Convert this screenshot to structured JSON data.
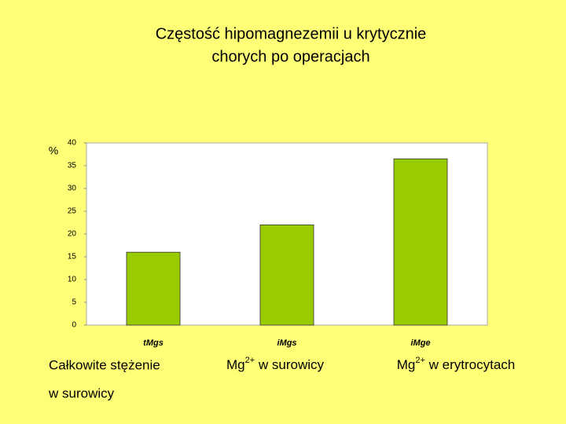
{
  "chart_data": {
    "type": "bar",
    "title": [
      "Częstość hipomagnezemii u krytycznie",
      "chorych po operacjach"
    ],
    "y_label": "%",
    "categories": [
      "tMgs",
      "iMgs",
      "iMge"
    ],
    "values": [
      16,
      22,
      36.5
    ],
    "color": "#99cc00",
    "ylim": [
      0,
      40
    ],
    "yticks": [
      0,
      5,
      10,
      15,
      20,
      25,
      30,
      35,
      40
    ],
    "captions": [
      {
        "lines": [
          "Całkowite stężenie",
          "w surowicy"
        ]
      },
      {
        "base": "Mg",
        "sup": "2+",
        "rest": " w surowicy"
      },
      {
        "base": "Mg",
        "sup": "2+",
        "rest": " w erytrocytach"
      }
    ]
  }
}
